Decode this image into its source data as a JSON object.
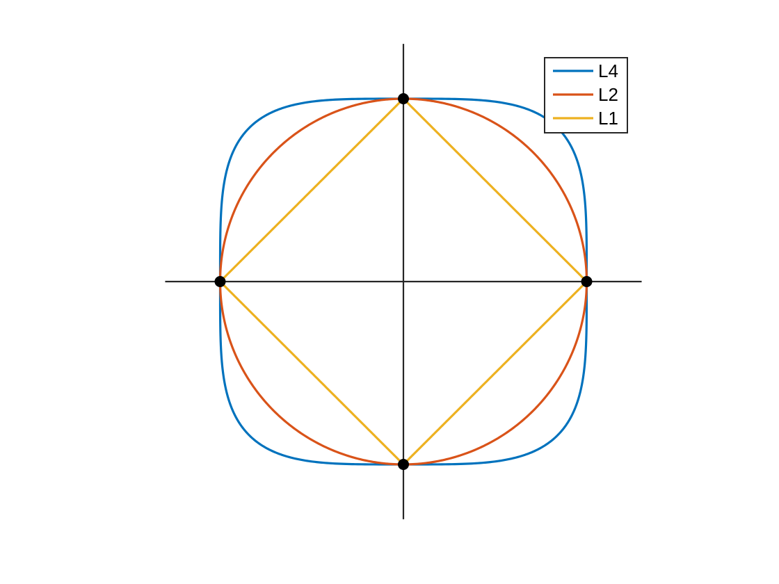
{
  "chart_data": {
    "type": "line",
    "title": "",
    "xlabel": "",
    "ylabel": "",
    "xlim": [
      -1.3,
      1.3
    ],
    "ylim": [
      -1.3,
      1.3
    ],
    "grid": false,
    "axes": "crosshair-through-origin",
    "legend_position": "top-right",
    "series": [
      {
        "name": "L4",
        "p": 4,
        "color": "#0072BD"
      },
      {
        "name": "L2",
        "p": 2,
        "color": "#D95319"
      },
      {
        "name": "L1",
        "p": 1,
        "color": "#EDB120"
      }
    ],
    "points": {
      "x": [
        0,
        1,
        0,
        -1
      ],
      "y": [
        1,
        0,
        -1,
        0
      ],
      "color": "#000000"
    }
  }
}
